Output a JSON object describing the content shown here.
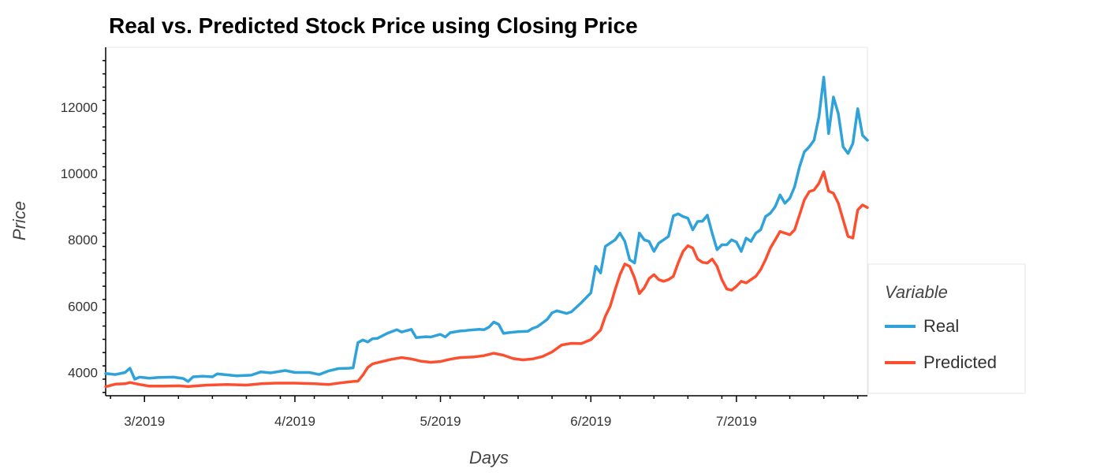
{
  "colors": {
    "real": "#30a2da",
    "predicted": "#fc4f30"
  },
  "chart_data": {
    "type": "line",
    "title": "Real vs. Predicted Stock Price using Closing Price",
    "xlabel": "Days",
    "ylabel": "Price",
    "xlim": [
      "2019-02-21",
      "2019-07-28"
    ],
    "ylim": [
      3300,
      13800
    ],
    "x_ticks": [
      {
        "date": "2019-03-01",
        "label": "3/2019"
      },
      {
        "date": "2019-04-01",
        "label": "4/2019"
      },
      {
        "date": "2019-05-01",
        "label": "5/2019"
      },
      {
        "date": "2019-06-01",
        "label": "6/2019"
      },
      {
        "date": "2019-07-01",
        "label": "7/2019"
      }
    ],
    "y_ticks": [
      4000,
      6000,
      8000,
      10000,
      12000
    ],
    "grid": false,
    "legend": {
      "title": "Variable",
      "position": "right"
    },
    "series": [
      {
        "name": "Real",
        "color": "#30a2da",
        "points": [
          [
            "2019-02-21",
            3970
          ],
          [
            "2019-02-23",
            3940
          ],
          [
            "2019-02-25",
            4000
          ],
          [
            "2019-02-26",
            4130
          ],
          [
            "2019-02-27",
            3800
          ],
          [
            "2019-02-28",
            3860
          ],
          [
            "2019-03-02",
            3830
          ],
          [
            "2019-03-04",
            3850
          ],
          [
            "2019-03-07",
            3860
          ],
          [
            "2019-03-09",
            3820
          ],
          [
            "2019-03-10",
            3730
          ],
          [
            "2019-03-11",
            3870
          ],
          [
            "2019-03-13",
            3890
          ],
          [
            "2019-03-15",
            3870
          ],
          [
            "2019-03-16",
            3960
          ],
          [
            "2019-03-18",
            3930
          ],
          [
            "2019-03-20",
            3900
          ],
          [
            "2019-03-23",
            3920
          ],
          [
            "2019-03-25",
            4020
          ],
          [
            "2019-03-27",
            3990
          ],
          [
            "2019-03-30",
            4060
          ],
          [
            "2019-04-01",
            4000
          ],
          [
            "2019-04-04",
            4000
          ],
          [
            "2019-04-06",
            3940
          ],
          [
            "2019-04-08",
            4050
          ],
          [
            "2019-04-10",
            4120
          ],
          [
            "2019-04-12",
            4130
          ],
          [
            "2019-04-13",
            4140
          ],
          [
            "2019-04-14",
            4900
          ],
          [
            "2019-04-15",
            4980
          ],
          [
            "2019-04-16",
            4920
          ],
          [
            "2019-04-17",
            5020
          ],
          [
            "2019-04-18",
            5030
          ],
          [
            "2019-04-20",
            5180
          ],
          [
            "2019-04-22",
            5290
          ],
          [
            "2019-04-23",
            5220
          ],
          [
            "2019-04-25",
            5300
          ],
          [
            "2019-04-26",
            5050
          ],
          [
            "2019-04-28",
            5080
          ],
          [
            "2019-04-29",
            5070
          ],
          [
            "2019-05-01",
            5150
          ],
          [
            "2019-05-02",
            5070
          ],
          [
            "2019-05-03",
            5200
          ],
          [
            "2019-05-05",
            5250
          ],
          [
            "2019-05-06",
            5260
          ],
          [
            "2019-05-07",
            5280
          ],
          [
            "2019-05-09",
            5300
          ],
          [
            "2019-05-10",
            5290
          ],
          [
            "2019-05-11",
            5370
          ],
          [
            "2019-05-12",
            5520
          ],
          [
            "2019-05-13",
            5450
          ],
          [
            "2019-05-14",
            5180
          ],
          [
            "2019-05-15",
            5200
          ],
          [
            "2019-05-17",
            5230
          ],
          [
            "2019-05-19",
            5240
          ],
          [
            "2019-05-20",
            5330
          ],
          [
            "2019-05-21",
            5380
          ],
          [
            "2019-05-23",
            5600
          ],
          [
            "2019-05-24",
            5800
          ],
          [
            "2019-05-25",
            5860
          ],
          [
            "2019-05-26",
            5820
          ],
          [
            "2019-05-27",
            5780
          ],
          [
            "2019-05-28",
            5830
          ],
          [
            "2019-05-30",
            6100
          ],
          [
            "2019-06-01",
            6400
          ],
          [
            "2019-06-02",
            7200
          ],
          [
            "2019-06-03",
            7000
          ],
          [
            "2019-06-04",
            7800
          ],
          [
            "2019-06-06",
            8000
          ],
          [
            "2019-06-07",
            8200
          ],
          [
            "2019-06-08",
            7950
          ],
          [
            "2019-06-09",
            7400
          ],
          [
            "2019-06-10",
            7300
          ],
          [
            "2019-06-11",
            8200
          ],
          [
            "2019-06-12",
            8000
          ],
          [
            "2019-06-13",
            7950
          ],
          [
            "2019-06-14",
            7650
          ],
          [
            "2019-06-15",
            7900
          ],
          [
            "2019-06-16",
            8000
          ],
          [
            "2019-06-17",
            8100
          ],
          [
            "2019-06-18",
            8720
          ],
          [
            "2019-06-19",
            8780
          ],
          [
            "2019-06-20",
            8700
          ],
          [
            "2019-06-21",
            8650
          ],
          [
            "2019-06-22",
            8300
          ],
          [
            "2019-06-23",
            8550
          ],
          [
            "2019-06-24",
            8560
          ],
          [
            "2019-06-25",
            8740
          ],
          [
            "2019-06-26",
            8200
          ],
          [
            "2019-06-27",
            7700
          ],
          [
            "2019-06-28",
            7850
          ],
          [
            "2019-06-29",
            7850
          ],
          [
            "2019-06-30",
            8000
          ],
          [
            "2019-07-01",
            7930
          ],
          [
            "2019-07-02",
            7650
          ],
          [
            "2019-07-03",
            8050
          ],
          [
            "2019-07-04",
            7950
          ],
          [
            "2019-07-05",
            8200
          ],
          [
            "2019-07-06",
            8300
          ],
          [
            "2019-07-07",
            8700
          ],
          [
            "2019-07-08",
            8800
          ],
          [
            "2019-07-09",
            9000
          ],
          [
            "2019-07-10",
            9350
          ],
          [
            "2019-07-11",
            9100
          ],
          [
            "2019-07-12",
            9250
          ],
          [
            "2019-07-13",
            9600
          ],
          [
            "2019-07-14",
            10200
          ],
          [
            "2019-07-15",
            10650
          ],
          [
            "2019-07-16",
            10800
          ],
          [
            "2019-07-17",
            11000
          ],
          [
            "2019-07-18",
            11700
          ],
          [
            "2019-07-19",
            12900
          ],
          [
            "2019-07-20",
            11200
          ],
          [
            "2019-07-21",
            12300
          ],
          [
            "2019-07-22",
            11800
          ],
          [
            "2019-07-23",
            10800
          ],
          [
            "2019-07-24",
            10600
          ],
          [
            "2019-07-25",
            10900
          ],
          [
            "2019-07-26",
            11950
          ],
          [
            "2019-07-27",
            11150
          ],
          [
            "2019-07-28",
            11000
          ]
        ]
      },
      {
        "name": "Predicted",
        "color": "#fc4f30",
        "points": [
          [
            "2019-02-21",
            3570
          ],
          [
            "2019-02-23",
            3650
          ],
          [
            "2019-02-25",
            3660
          ],
          [
            "2019-02-26",
            3700
          ],
          [
            "2019-02-28",
            3640
          ],
          [
            "2019-03-02",
            3590
          ],
          [
            "2019-03-05",
            3590
          ],
          [
            "2019-03-08",
            3600
          ],
          [
            "2019-03-10",
            3580
          ],
          [
            "2019-03-14",
            3620
          ],
          [
            "2019-03-18",
            3640
          ],
          [
            "2019-03-22",
            3620
          ],
          [
            "2019-03-25",
            3660
          ],
          [
            "2019-03-28",
            3680
          ],
          [
            "2019-04-01",
            3680
          ],
          [
            "2019-04-05",
            3660
          ],
          [
            "2019-04-08",
            3640
          ],
          [
            "2019-04-11",
            3700
          ],
          [
            "2019-04-13",
            3730
          ],
          [
            "2019-04-14",
            3740
          ],
          [
            "2019-04-15",
            3920
          ],
          [
            "2019-04-16",
            4150
          ],
          [
            "2019-04-17",
            4260
          ],
          [
            "2019-04-19",
            4330
          ],
          [
            "2019-04-21",
            4400
          ],
          [
            "2019-04-23",
            4450
          ],
          [
            "2019-04-25",
            4410
          ],
          [
            "2019-04-27",
            4340
          ],
          [
            "2019-04-29",
            4310
          ],
          [
            "2019-05-01",
            4330
          ],
          [
            "2019-05-03",
            4400
          ],
          [
            "2019-05-05",
            4450
          ],
          [
            "2019-05-08",
            4470
          ],
          [
            "2019-05-10",
            4510
          ],
          [
            "2019-05-12",
            4580
          ],
          [
            "2019-05-14",
            4520
          ],
          [
            "2019-05-16",
            4420
          ],
          [
            "2019-05-18",
            4380
          ],
          [
            "2019-05-20",
            4410
          ],
          [
            "2019-05-22",
            4480
          ],
          [
            "2019-05-24",
            4620
          ],
          [
            "2019-05-26",
            4830
          ],
          [
            "2019-05-28",
            4880
          ],
          [
            "2019-05-30",
            4870
          ],
          [
            "2019-06-01",
            4990
          ],
          [
            "2019-06-03",
            5280
          ],
          [
            "2019-06-04",
            5700
          ],
          [
            "2019-06-05",
            6000
          ],
          [
            "2019-06-06",
            6500
          ],
          [
            "2019-06-07",
            6950
          ],
          [
            "2019-06-08",
            7270
          ],
          [
            "2019-06-09",
            7200
          ],
          [
            "2019-06-10",
            6850
          ],
          [
            "2019-06-11",
            6380
          ],
          [
            "2019-06-12",
            6550
          ],
          [
            "2019-06-13",
            6830
          ],
          [
            "2019-06-14",
            6950
          ],
          [
            "2019-06-15",
            6800
          ],
          [
            "2019-06-16",
            6750
          ],
          [
            "2019-06-17",
            6800
          ],
          [
            "2019-06-18",
            6900
          ],
          [
            "2019-06-19",
            7300
          ],
          [
            "2019-06-20",
            7650
          ],
          [
            "2019-06-21",
            7820
          ],
          [
            "2019-06-22",
            7750
          ],
          [
            "2019-06-23",
            7420
          ],
          [
            "2019-06-24",
            7320
          ],
          [
            "2019-06-25",
            7300
          ],
          [
            "2019-06-26",
            7420
          ],
          [
            "2019-06-27",
            7200
          ],
          [
            "2019-06-28",
            6800
          ],
          [
            "2019-06-29",
            6520
          ],
          [
            "2019-06-30",
            6480
          ],
          [
            "2019-07-01",
            6600
          ],
          [
            "2019-07-02",
            6750
          ],
          [
            "2019-07-03",
            6700
          ],
          [
            "2019-07-04",
            6800
          ],
          [
            "2019-07-05",
            6900
          ],
          [
            "2019-07-06",
            7100
          ],
          [
            "2019-07-07",
            7400
          ],
          [
            "2019-07-08",
            7750
          ],
          [
            "2019-07-09",
            8000
          ],
          [
            "2019-07-10",
            8250
          ],
          [
            "2019-07-11",
            8200
          ],
          [
            "2019-07-12",
            8150
          ],
          [
            "2019-07-13",
            8300
          ],
          [
            "2019-07-14",
            8750
          ],
          [
            "2019-07-15",
            9200
          ],
          [
            "2019-07-16",
            9450
          ],
          [
            "2019-07-17",
            9500
          ],
          [
            "2019-07-18",
            9700
          ],
          [
            "2019-07-19",
            10050
          ],
          [
            "2019-07-20",
            9470
          ],
          [
            "2019-07-21",
            9400
          ],
          [
            "2019-07-22",
            9100
          ],
          [
            "2019-07-23",
            8600
          ],
          [
            "2019-07-24",
            8100
          ],
          [
            "2019-07-25",
            8050
          ],
          [
            "2019-07-26",
            8900
          ],
          [
            "2019-07-27",
            9050
          ],
          [
            "2019-07-28",
            8970
          ]
        ]
      }
    ]
  }
}
